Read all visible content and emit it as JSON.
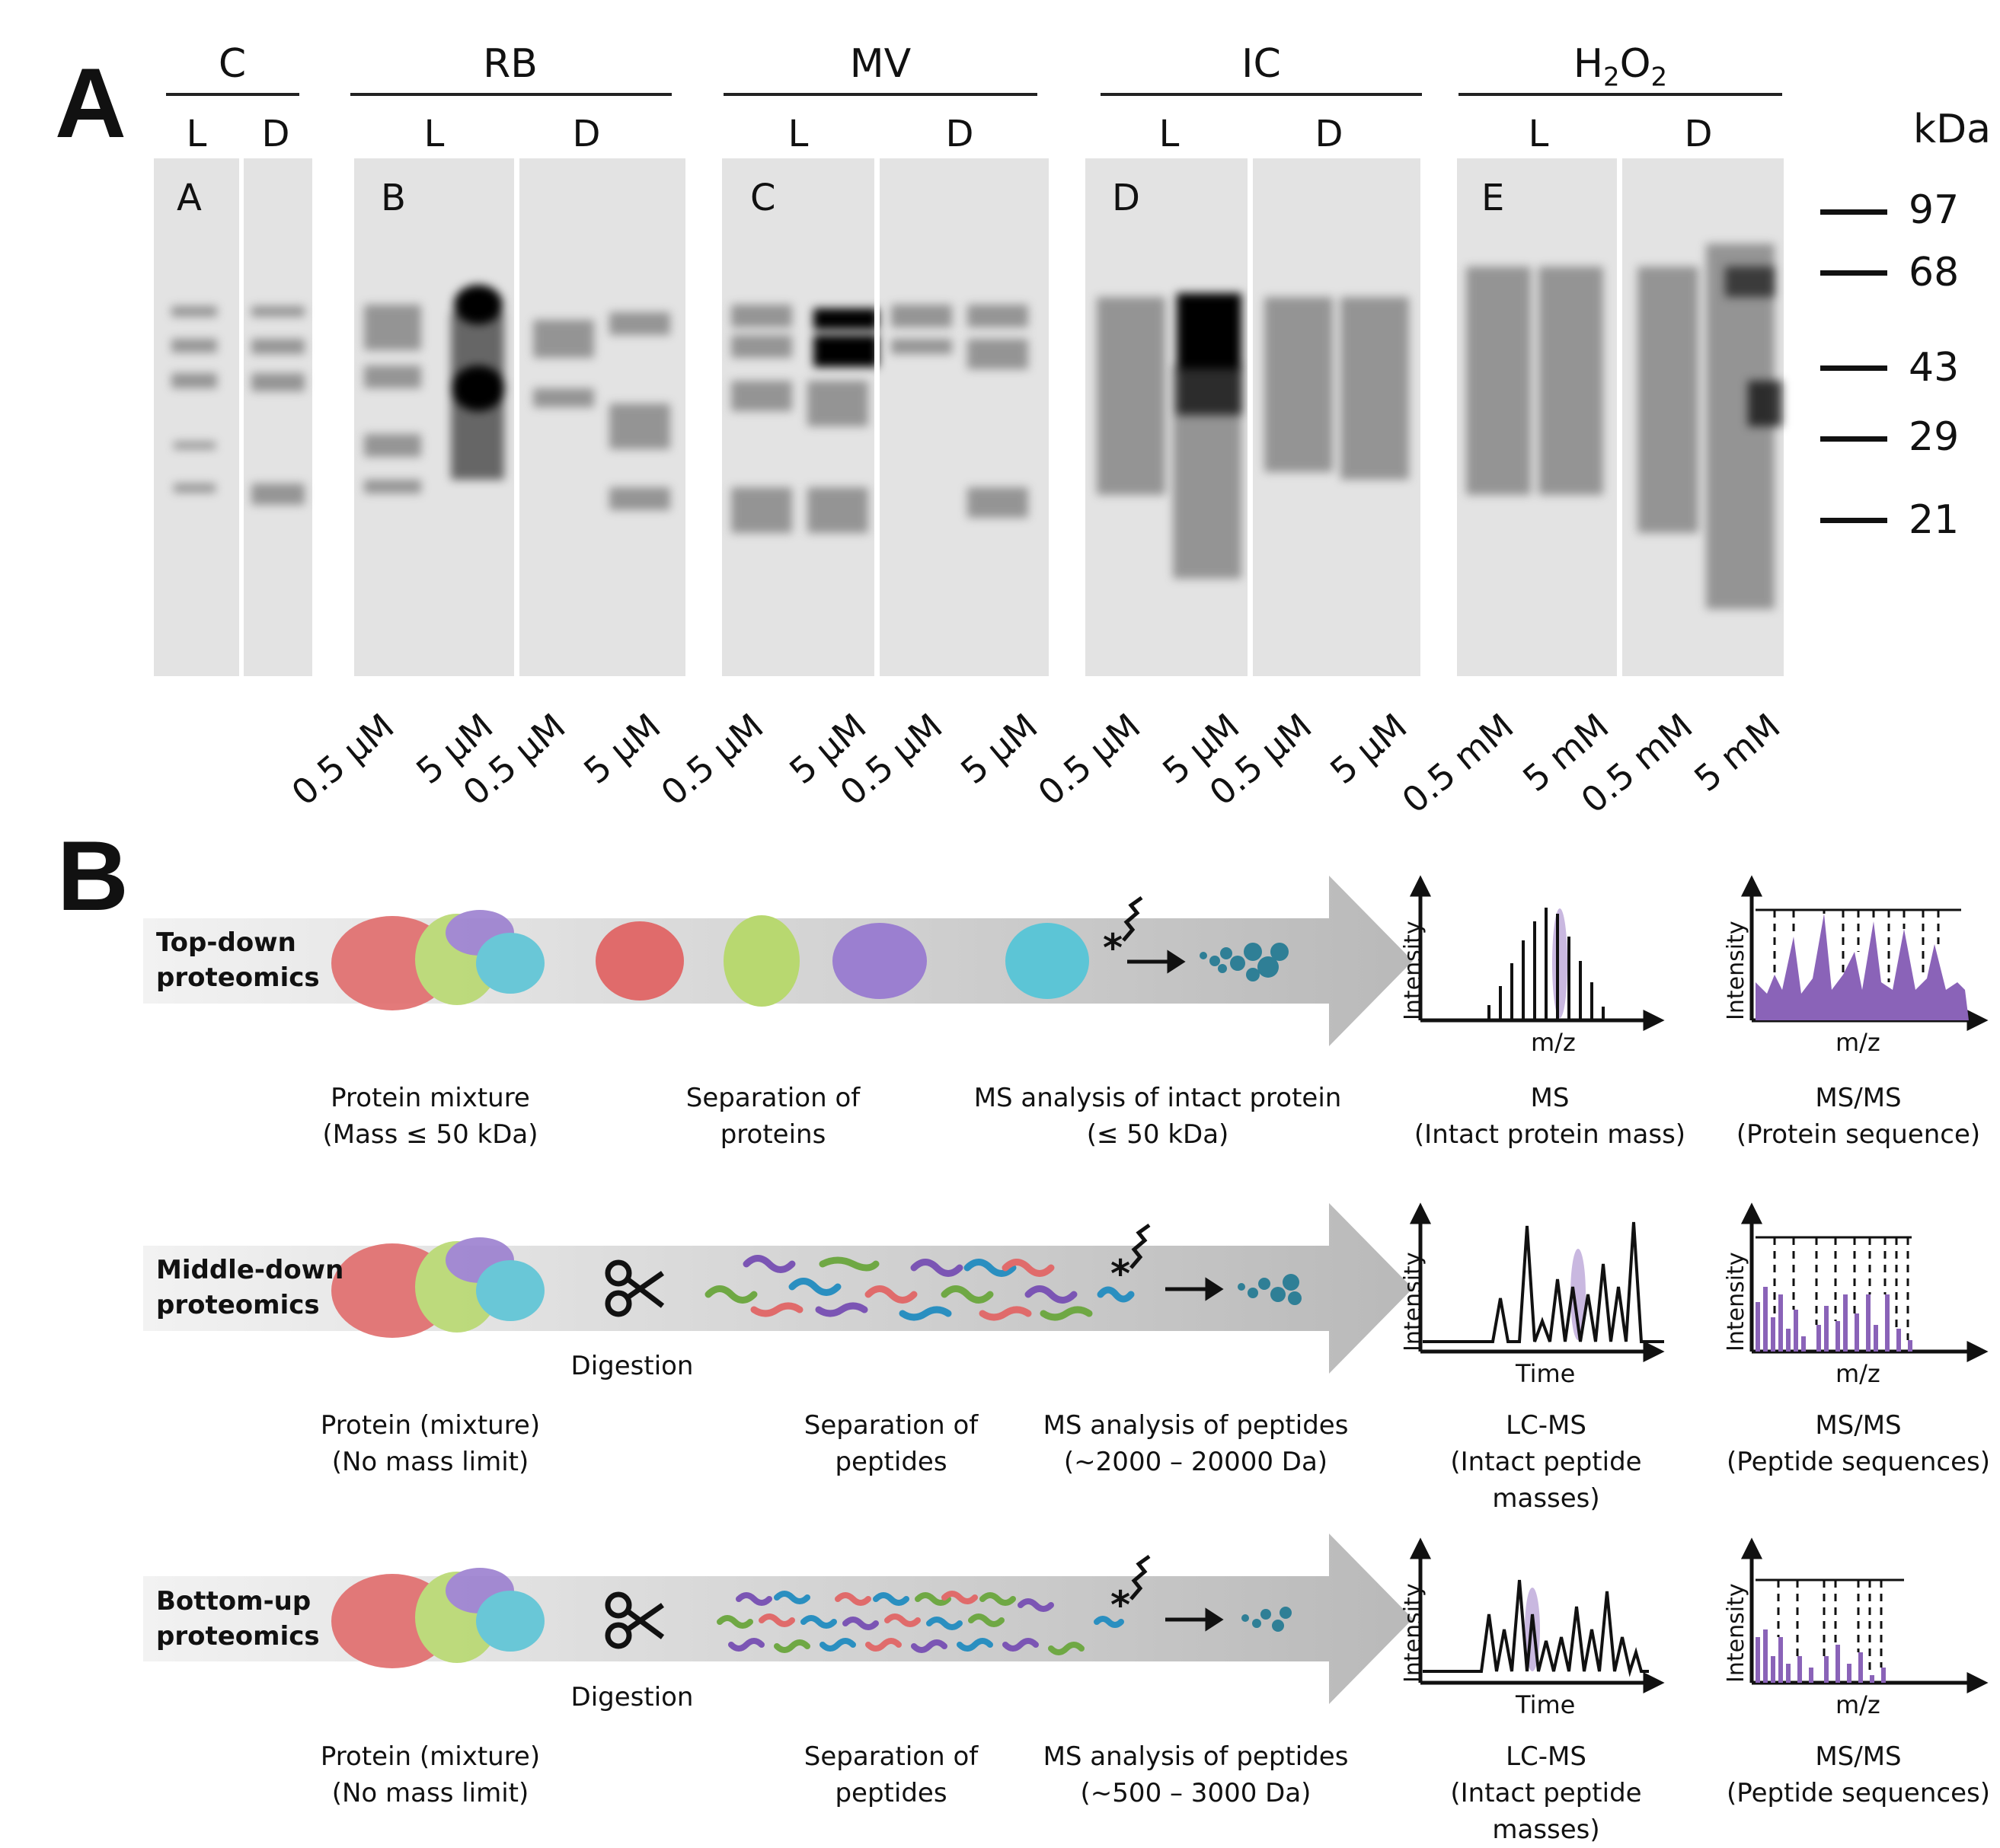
{
  "panel_a": {
    "letter": "A",
    "groups": [
      {
        "label": "C",
        "sub": [
          "L",
          "D"
        ]
      },
      {
        "label": "RB",
        "sub": [
          "L",
          "D"
        ]
      },
      {
        "label": "MV",
        "sub": [
          "L",
          "D"
        ]
      },
      {
        "label": "IC",
        "sub": [
          "L",
          "D"
        ]
      },
      {
        "label_main": "H",
        "label_sub": "2",
        "label_main2": "O",
        "label_sub2": "2",
        "sub": [
          "L",
          "D"
        ]
      }
    ],
    "lane_letters": [
      "A",
      "B",
      "C",
      "D",
      "E"
    ],
    "concentrations": [
      "0.5 µM",
      "5 µM",
      "0.5 µM",
      "5 µM",
      "0.5 µM",
      "5 µM",
      "0.5 µM",
      "5 µM",
      "0.5 µM",
      "5 µM",
      "0.5 µM",
      "5 µM",
      "0.5 mM",
      "5 mM",
      "0.5 mM",
      "5 mM"
    ],
    "marker_unit": "kDa",
    "markers": [
      "97",
      "68",
      "43",
      "29",
      "21"
    ]
  },
  "panel_b": {
    "letter": "B",
    "rows": [
      {
        "title_line1": "Top-down",
        "title_line2": "proteomics",
        "cap1_line1": "Protein mixture",
        "cap1_line2": "(Mass ≤ 50 kDa)",
        "cap2_line1": "Separation of",
        "cap2_line2": "proteins",
        "cap3_line1": "MS analysis of  intact protein",
        "cap3_line2": "(≤ 50 kDa)",
        "cap4_line1": "MS",
        "cap4_line2": "(Intact protein mass)",
        "cap5_line1": "MS/MS",
        "cap5_line2": "(Protein sequence)",
        "chart1_ylabel": "Intensity",
        "chart1_xlabel": "m/z",
        "chart2_ylabel": "Intensity",
        "chart2_xlabel": "m/z"
      },
      {
        "title_line1": "Middle-down",
        "title_line2": "proteomics",
        "digestion": "Digestion",
        "cap1_line1": "Protein (mixture)",
        "cap1_line2": "(No mass limit)",
        "cap2_line1": "Separation of",
        "cap2_line2": "peptides",
        "cap3_line1": "MS analysis of peptides",
        "cap3_line2": "(~2000 – 20000 Da)",
        "cap4_line1": "LC-MS",
        "cap4_line2": "(Intact peptide masses)",
        "cap5_line1": "MS/MS",
        "cap5_line2": "(Peptide sequences)",
        "chart1_ylabel": "Intensity",
        "chart1_xlabel": "Time",
        "chart2_ylabel": "Intensity",
        "chart2_xlabel": "m/z"
      },
      {
        "title_line1": "Bottom-up",
        "title_line2": "proteomics",
        "digestion": "Digestion",
        "cap1_line1": "Protein (mixture)",
        "cap1_line2": "(No mass limit)",
        "cap2_line1": "Separation of",
        "cap2_line2": "peptides",
        "cap3_line1": "MS analysis of  peptides",
        "cap3_line2": "(~500 – 3000 Da)",
        "cap4_line1": "LC-MS",
        "cap4_line2": "(Intact peptide masses)",
        "cap5_line1": "MS/MS",
        "cap5_line2": "(Peptide sequences)",
        "chart1_ylabel": "Intensity",
        "chart1_xlabel": "Time",
        "chart2_ylabel": "Intensity",
        "chart2_xlabel": "m/z"
      }
    ],
    "colors": {
      "protein_red": "#e06b6b",
      "protein_green": "#b8d870",
      "protein_purple": "#9b7fd0",
      "protein_cyan": "#5cc5d6",
      "peptide_blue": "#2a8fc0",
      "ms_purple": "#8a63b8",
      "droplet_teal": "#2f7f96"
    }
  }
}
